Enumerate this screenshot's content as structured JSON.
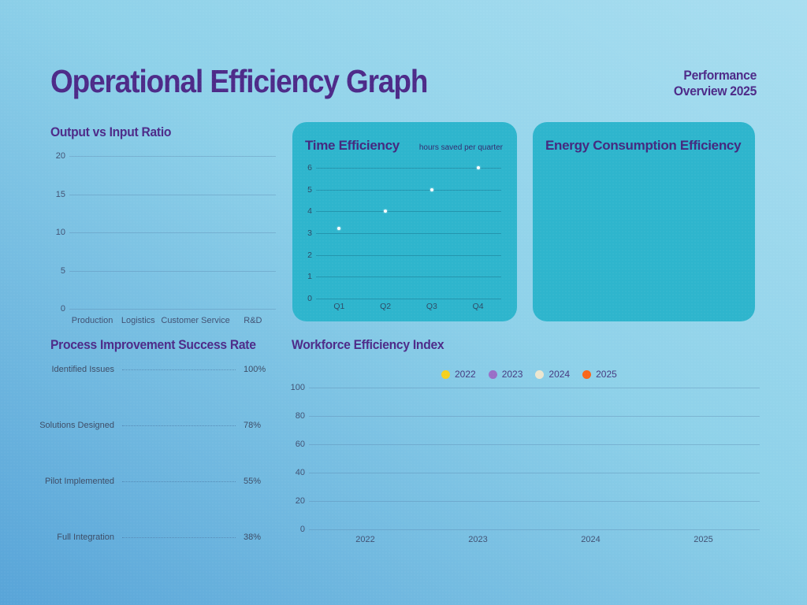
{
  "header": {
    "title": "Operational Efficiency Graph",
    "subtitle": "Performance Overview 2025"
  },
  "colors": {
    "panel_teal": "#2eb5cd",
    "heading_purple": "#4d2a88",
    "background_top_right": "#a9def0",
    "background_bottom_left": "#58a4d8",
    "point_white": "#ffffff"
  },
  "output_chart": {
    "title": "Output vs Input Ratio",
    "yticks": [
      "20",
      "15",
      "10",
      "5",
      "0"
    ],
    "categories": [
      "Production",
      "Logistics",
      "Customer Service",
      "R&D"
    ]
  },
  "time_chart": {
    "title": "Time Efficiency",
    "subtitle": "hours saved per quarter",
    "yticks": [
      "6",
      "5",
      "4",
      "3",
      "2",
      "1",
      "0"
    ],
    "categories": [
      "Q1",
      "Q2",
      "Q3",
      "Q4"
    ],
    "values": [
      3.2,
      4,
      5,
      6
    ],
    "ymax": 6
  },
  "energy_chart": {
    "title": "Energy Consumption Efficiency"
  },
  "process_chart": {
    "title": "Process Improvement Success Rate",
    "rows": [
      {
        "label": "Identified Issues",
        "value": "100%"
      },
      {
        "label": "Solutions Designed",
        "value": "78%"
      },
      {
        "label": "Pilot Implemented",
        "value": "55%"
      },
      {
        "label": "Full Integration",
        "value": "38%"
      }
    ]
  },
  "workforce_chart": {
    "title": "Workforce Efficiency Index",
    "legend": [
      {
        "label": "2022",
        "color": "#f5d01e"
      },
      {
        "label": "2023",
        "color": "#9a6fc7"
      },
      {
        "label": "2024",
        "color": "#ece6cf"
      },
      {
        "label": "2025",
        "color": "#f9661a"
      }
    ],
    "yticks": [
      "100",
      "80",
      "60",
      "40",
      "20",
      "0"
    ],
    "categories": [
      "2022",
      "2023",
      "2024",
      "2025"
    ]
  },
  "chart_data": [
    {
      "type": "bar",
      "title": "Output vs Input Ratio",
      "categories": [
        "Production",
        "Logistics",
        "Customer Service",
        "R&D"
      ],
      "values": [],
      "ylim": [
        0,
        20
      ],
      "yticks": [
        0,
        5,
        10,
        15,
        20
      ],
      "grid": true,
      "note": "axes and gridlines rendered, no bars visible"
    },
    {
      "type": "scatter",
      "title": "Time Efficiency",
      "subtitle": "hours saved per quarter",
      "x": [
        "Q1",
        "Q2",
        "Q3",
        "Q4"
      ],
      "values": [
        3.2,
        4,
        5,
        6
      ],
      "ylim": [
        0,
        6
      ],
      "yticks": [
        0,
        1,
        2,
        3,
        4,
        5,
        6
      ],
      "grid": true,
      "point_color": "#ffffff"
    },
    {
      "type": "other",
      "title": "Energy Consumption Efficiency",
      "values": [],
      "note": "empty teal panel, title only"
    },
    {
      "type": "table",
      "title": "Process Improvement Success Rate",
      "categories": [
        "Identified Issues",
        "Solutions Designed",
        "Pilot Implemented",
        "Full Integration"
      ],
      "values": [
        100,
        78,
        55,
        38
      ],
      "unit": "%"
    },
    {
      "type": "scatter",
      "title": "Workforce Efficiency Index",
      "x": [
        "2022",
        "2023",
        "2024",
        "2025"
      ],
      "series": [
        {
          "name": "2022",
          "color": "#f5d01e",
          "values": []
        },
        {
          "name": "2023",
          "color": "#9a6fc7",
          "values": []
        },
        {
          "name": "2024",
          "color": "#ece6cf",
          "values": []
        },
        {
          "name": "2025",
          "color": "#f9661a",
          "values": []
        }
      ],
      "ylim": [
        0,
        100
      ],
      "yticks": [
        0,
        20,
        40,
        60,
        80,
        100
      ],
      "grid": true,
      "legend_position": "top",
      "note": "axes and legend rendered, no data points visible"
    }
  ]
}
